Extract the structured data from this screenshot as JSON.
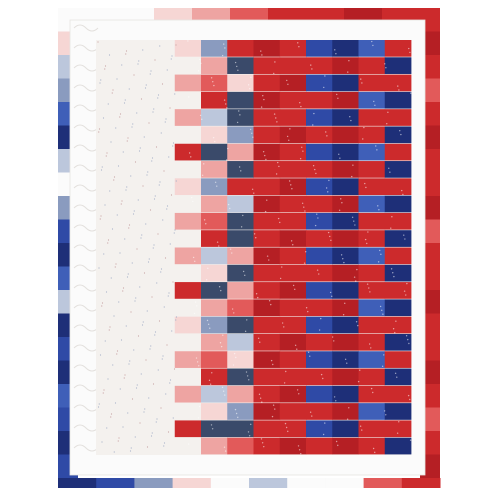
{
  "image": {
    "subject": "quilt",
    "background": "#ffffff"
  },
  "palette": {
    "red": "#cc2a2c",
    "red_dark": "#b51f24",
    "red_light": "#e25a5a",
    "pink": "#eea4a2",
    "pink_pale": "#f6d6d4",
    "navy": "#1e2f78",
    "blue": "#2f4aa6",
    "blue_mid": "#3f5fb8",
    "slate": "#8a9bbf",
    "slate_light": "#bcc7dc",
    "cream": "#f4f1ee",
    "white": "#fbfbfb",
    "print_dark": "#3a4a6a"
  },
  "quilt": {
    "rows": 24,
    "columns": 12,
    "column_tones": [
      "white",
      "white",
      "slate_light",
      "pink_pale",
      "pink",
      "red_light",
      "red",
      "red",
      "blue",
      "navy",
      "red_dark",
      "red"
    ],
    "border_tone": "white",
    "side_strip_top_tone": "slate_light",
    "side_strip_bottom_tone": "blue"
  }
}
